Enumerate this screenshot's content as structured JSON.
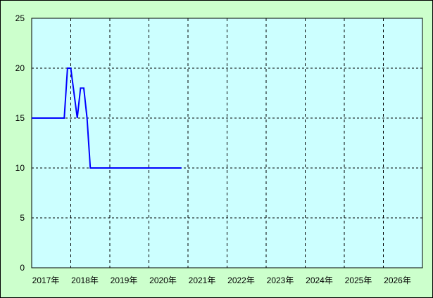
{
  "chart_data": {
    "type": "line",
    "title": "",
    "xlabel": "",
    "ylabel": "",
    "x_tick_labels": [
      "2017年",
      "2018年",
      "2019年",
      "2020年",
      "2021年",
      "2022年",
      "2023年",
      "2024年",
      "2025年",
      "2026年"
    ],
    "y_tick_labels": [
      "0",
      "5",
      "10",
      "15",
      "20",
      "25"
    ],
    "xlim": [
      2017,
      2027
    ],
    "ylim": [
      0,
      25
    ],
    "grid": true,
    "legend": "none",
    "colors": {
      "line": "#0000ff",
      "plot_bg": "#ccffff",
      "page_bg": "#ccffcc",
      "grid": "#000000"
    },
    "series": [
      {
        "x": [
          "2017-01",
          "2017-11",
          "2017-12",
          "2018-01",
          "2018-03",
          "2018-04",
          "2018-05",
          "2018-06",
          "2018-07",
          "2020-11"
        ],
        "y": [
          15,
          15,
          20,
          20,
          15,
          18,
          18,
          15,
          10,
          10
        ]
      }
    ]
  }
}
